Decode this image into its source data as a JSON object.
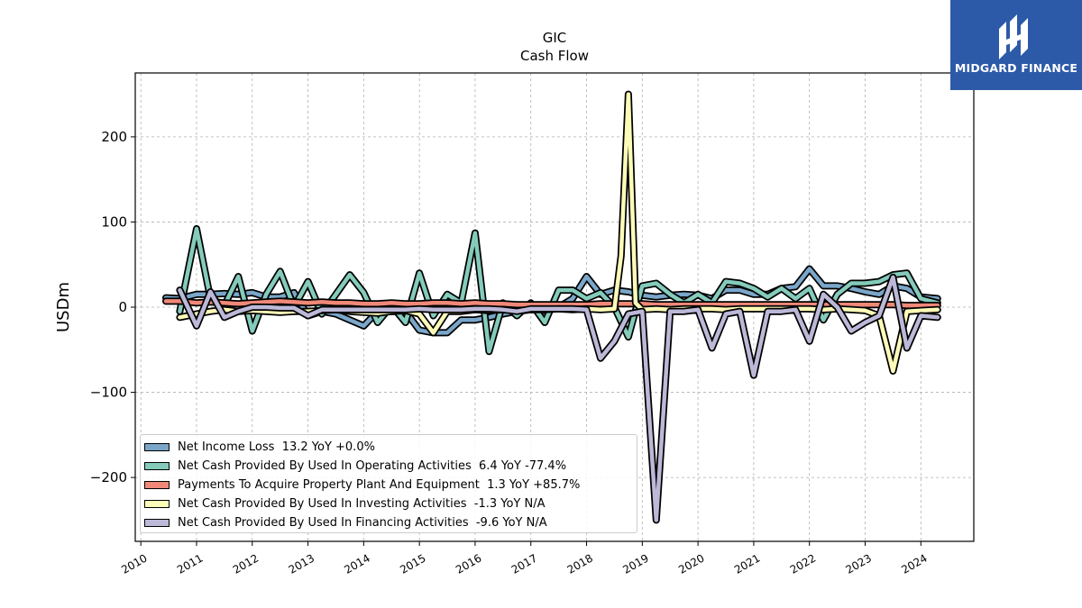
{
  "chart_data": {
    "type": "line",
    "title": "GIC",
    "subtitle": "Cash Flow",
    "xlabel": "",
    "ylabel": "USDm",
    "xlim": [
      2009.9,
      2024.95
    ],
    "ylim": [
      -275,
      275
    ],
    "x_ticks": [
      "2010",
      "2011",
      "2012",
      "2013",
      "2014",
      "2015",
      "2016",
      "2017",
      "2018",
      "2019",
      "2020",
      "2021",
      "2022",
      "2023",
      "2024"
    ],
    "y_ticks": [
      -200,
      -100,
      0,
      100,
      200
    ],
    "y_tick_labels": [
      "−200",
      "−100",
      "0",
      "100",
      "200"
    ],
    "grid": true,
    "legend_position": "lower-left",
    "series": [
      {
        "name": "Net Income Loss  13.2 YoY +0.0%",
        "color": "#7aa6c9",
        "x": [
          2010.45,
          2010.7,
          2011.0,
          2011.25,
          2011.5,
          2011.75,
          2012.0,
          2012.25,
          2012.5,
          2012.75,
          2013.0,
          2013.25,
          2013.5,
          2013.75,
          2014.0,
          2014.25,
          2014.5,
          2014.75,
          2015.0,
          2015.25,
          2015.5,
          2015.75,
          2016.0,
          2016.25,
          2016.5,
          2016.75,
          2017.0,
          2017.25,
          2017.5,
          2017.75,
          2018.0,
          2018.25,
          2018.5,
          2018.75,
          2019.0,
          2019.25,
          2019.5,
          2019.75,
          2020.0,
          2020.25,
          2020.5,
          2020.75,
          2021.0,
          2021.25,
          2021.5,
          2021.75,
          2022.0,
          2022.25,
          2022.5,
          2022.75,
          2023.0,
          2023.25,
          2023.5,
          2023.75,
          2024.0,
          2024.3
        ],
        "values": [
          11,
          10,
          15,
          15,
          16,
          15,
          17,
          12,
          12,
          17,
          -10,
          -5,
          -8,
          -15,
          -22,
          -5,
          -5,
          -5,
          -27,
          -30,
          -30,
          -15,
          -15,
          -12,
          -8,
          -5,
          -3,
          -4,
          0,
          10,
          36,
          15,
          20,
          18,
          14,
          12,
          14,
          15,
          14,
          10,
          20,
          20,
          15,
          15,
          22,
          24,
          45,
          25,
          25,
          22,
          18,
          15,
          25,
          22,
          12,
          10
        ]
      },
      {
        "name": "Net Cash Provided By Used In Operating Activities  6.4 YoY -77.4%",
        "color": "#84cbbb",
        "x": [
          2010.7,
          2011.0,
          2011.25,
          2011.5,
          2011.75,
          2012.0,
          2012.25,
          2012.5,
          2012.75,
          2013.0,
          2013.25,
          2013.5,
          2013.75,
          2014.0,
          2014.25,
          2014.5,
          2014.75,
          2015.0,
          2015.25,
          2015.5,
          2015.75,
          2016.0,
          2016.25,
          2016.5,
          2016.75,
          2017.0,
          2017.25,
          2017.5,
          2017.75,
          2018.0,
          2018.25,
          2018.5,
          2018.75,
          2019.0,
          2019.25,
          2019.5,
          2019.75,
          2020.0,
          2020.25,
          2020.5,
          2020.75,
          2021.0,
          2021.25,
          2021.5,
          2021.75,
          2022.0,
          2022.25,
          2022.5,
          2022.75,
          2023.0,
          2023.25,
          2023.5,
          2023.75,
          2024.0,
          2024.3
        ],
        "values": [
          -5,
          92,
          10,
          2,
          36,
          -28,
          15,
          42,
          0,
          30,
          -8,
          15,
          38,
          17,
          -18,
          2,
          -18,
          40,
          -10,
          15,
          5,
          87,
          -52,
          5,
          -10,
          5,
          -18,
          20,
          20,
          10,
          17,
          0,
          -35,
          25,
          28,
          15,
          5,
          15,
          5,
          30,
          28,
          22,
          12,
          22,
          10,
          22,
          -15,
          15,
          28,
          28,
          30,
          38,
          40,
          10,
          5
        ]
      },
      {
        "name": "Payments To Acquire Property Plant And Equipment  1.3 YoY +85.7%",
        "color": "#f08878",
        "x": [
          2010.45,
          2010.7,
          2011.0,
          2011.25,
          2011.5,
          2011.75,
          2012.0,
          2012.25,
          2012.5,
          2012.75,
          2013.0,
          2013.25,
          2013.5,
          2013.75,
          2014.0,
          2014.25,
          2014.5,
          2014.75,
          2015.0,
          2015.25,
          2015.5,
          2015.75,
          2016.0,
          2016.25,
          2016.5,
          2016.75,
          2017.0,
          2017.25,
          2017.5,
          2017.75,
          2018.0,
          2018.25,
          2018.5,
          2018.75,
          2019.0,
          2019.25,
          2019.5,
          2019.75,
          2020.0,
          2020.25,
          2020.5,
          2020.75,
          2021.0,
          2021.25,
          2021.5,
          2021.75,
          2022.0,
          2022.25,
          2022.5,
          2022.75,
          2023.0,
          2023.25,
          2023.5,
          2023.75,
          2024.0,
          2024.3
        ],
        "values": [
          7,
          7,
          5,
          6,
          5,
          4,
          5,
          6,
          7,
          6,
          5,
          6,
          5,
          5,
          4,
          4,
          5,
          4,
          4,
          5,
          5,
          4,
          5,
          4,
          4,
          3,
          3,
          3,
          3,
          3,
          3,
          4,
          4,
          4,
          4,
          3,
          3,
          3,
          3,
          3,
          3,
          3,
          3,
          3,
          3,
          3,
          3,
          3,
          3,
          3,
          3,
          3,
          3,
          2,
          2,
          2
        ]
      },
      {
        "name": "Net Cash Provided By Used In Investing Activities  -1.3 YoY N/A",
        "color": "#fdfbb8",
        "x": [
          2010.7,
          2011.0,
          2011.25,
          2011.5,
          2011.75,
          2012.0,
          2012.25,
          2012.5,
          2012.75,
          2013.0,
          2013.25,
          2013.5,
          2013.75,
          2014.0,
          2014.25,
          2014.5,
          2014.75,
          2015.0,
          2015.25,
          2015.5,
          2015.75,
          2016.0,
          2016.25,
          2016.5,
          2016.75,
          2017.0,
          2017.25,
          2017.5,
          2017.75,
          2018.0,
          2018.25,
          2018.5,
          2018.62,
          2018.75,
          2018.88,
          2019.0,
          2019.25,
          2019.5,
          2019.75,
          2020.0,
          2020.25,
          2020.5,
          2020.75,
          2021.0,
          2021.25,
          2021.5,
          2021.75,
          2022.0,
          2022.25,
          2022.5,
          2022.75,
          2023.0,
          2023.25,
          2023.5,
          2023.75,
          2024.0,
          2024.3
        ],
        "values": [
          -12,
          -8,
          -5,
          -3,
          -5,
          -4,
          -5,
          -6,
          -5,
          -5,
          -4,
          -3,
          -5,
          -6,
          -7,
          -5,
          -4,
          -8,
          -30,
          -5,
          -5,
          -3,
          -4,
          -3,
          -4,
          -3,
          -3,
          -2,
          -3,
          -2,
          -3,
          -2,
          60,
          250,
          5,
          -3,
          -2,
          -3,
          -2,
          -2,
          -2,
          -3,
          -2,
          -2,
          -2,
          -2,
          -2,
          -2,
          -3,
          -2,
          -3,
          -4,
          -10,
          -75,
          -5,
          -4,
          -3
        ]
      },
      {
        "name": "Net Cash Provided By Used In Financing Activities  -9.6 YoY N/A",
        "color": "#bcb8d8",
        "x": [
          2010.7,
          2011.0,
          2011.25,
          2011.5,
          2011.75,
          2012.0,
          2012.25,
          2012.5,
          2012.75,
          2013.0,
          2013.25,
          2013.5,
          2013.75,
          2014.0,
          2014.25,
          2014.5,
          2014.75,
          2015.0,
          2015.25,
          2015.5,
          2015.75,
          2016.0,
          2016.25,
          2016.5,
          2016.75,
          2017.0,
          2017.25,
          2017.5,
          2017.75,
          2018.0,
          2018.25,
          2018.5,
          2018.75,
          2019.0,
          2019.25,
          2019.5,
          2019.75,
          2020.0,
          2020.25,
          2020.5,
          2020.75,
          2021.0,
          2021.25,
          2021.5,
          2021.75,
          2022.0,
          2022.25,
          2022.5,
          2022.75,
          2023.0,
          2023.25,
          2023.5,
          2023.75,
          2024.0,
          2024.3
        ],
        "values": [
          20,
          -22,
          18,
          -12,
          -5,
          0,
          0,
          -1,
          -1,
          -10,
          -3,
          -3,
          -3,
          -3,
          -3,
          -3,
          -3,
          -2,
          -3,
          -3,
          -3,
          -2,
          -2,
          -3,
          -5,
          -2,
          -2,
          -2,
          -2,
          -3,
          -60,
          -40,
          -8,
          -5,
          -250,
          -5,
          -5,
          -3,
          -48,
          -8,
          -5,
          -80,
          -5,
          -5,
          -3,
          -40,
          15,
          0,
          -28,
          -18,
          -10,
          35,
          -48,
          -10,
          -12
        ]
      }
    ]
  },
  "logo": {
    "name": "MIDGARD FINANCE"
  }
}
